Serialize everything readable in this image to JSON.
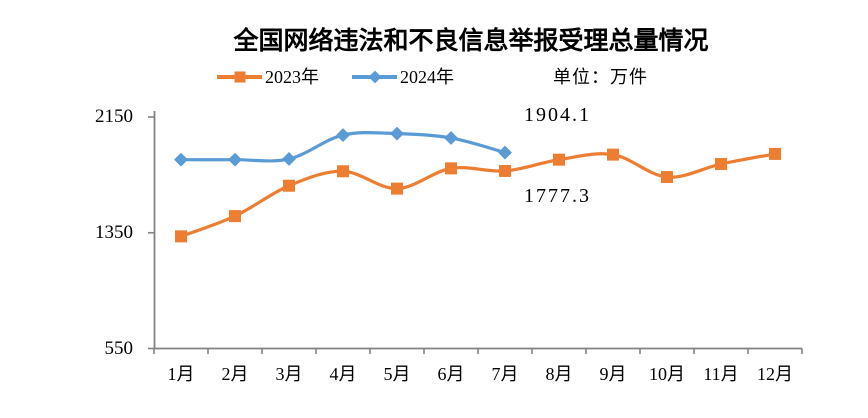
{
  "title": "全国网络违法和不良信息举报受理总量情况",
  "unit_label": "单位：万件",
  "colors": {
    "series_2023": "#ED7D31",
    "series_2024": "#5B9BD5",
    "axis": "#828282",
    "text": "#000000",
    "background": "#FFFFFF"
  },
  "legend": [
    {
      "label": "2023年",
      "marker": "square",
      "color": "#ED7D31"
    },
    {
      "label": "2024年",
      "marker": "diamond",
      "color": "#5B9BD5"
    }
  ],
  "chart_data": {
    "type": "line",
    "title": "全国网络违法和不良信息举报受理总量情况",
    "unit": "万件",
    "categories": [
      "1月",
      "2月",
      "3月",
      "4月",
      "5月",
      "6月",
      "7月",
      "8月",
      "9月",
      "10月",
      "11月",
      "12月"
    ],
    "xlabel": "",
    "ylabel": "",
    "ylim": [
      550,
      2150
    ],
    "yticks": [
      550,
      1350,
      2150
    ],
    "grid": false,
    "legend_position": "top",
    "series": [
      {
        "name": "2023年",
        "color": "#ED7D31",
        "marker": "square",
        "smooth": true,
        "values": [
          1325,
          1465,
          1675,
          1775,
          1655,
          1795,
          1777.3,
          1855,
          1890,
          1735,
          1825,
          1895
        ]
      },
      {
        "name": "2024年",
        "color": "#5B9BD5",
        "marker": "diamond",
        "smooth": true,
        "values": [
          1855,
          1855,
          1860,
          2025,
          2035,
          2005,
          1904.1
        ]
      }
    ],
    "annotations": [
      {
        "text": "1904.1",
        "value": 1904.1,
        "series": "2024年",
        "category": "7月"
      },
      {
        "text": "1777.3",
        "value": 1777.3,
        "series": "2023年",
        "category": "7月"
      }
    ]
  }
}
